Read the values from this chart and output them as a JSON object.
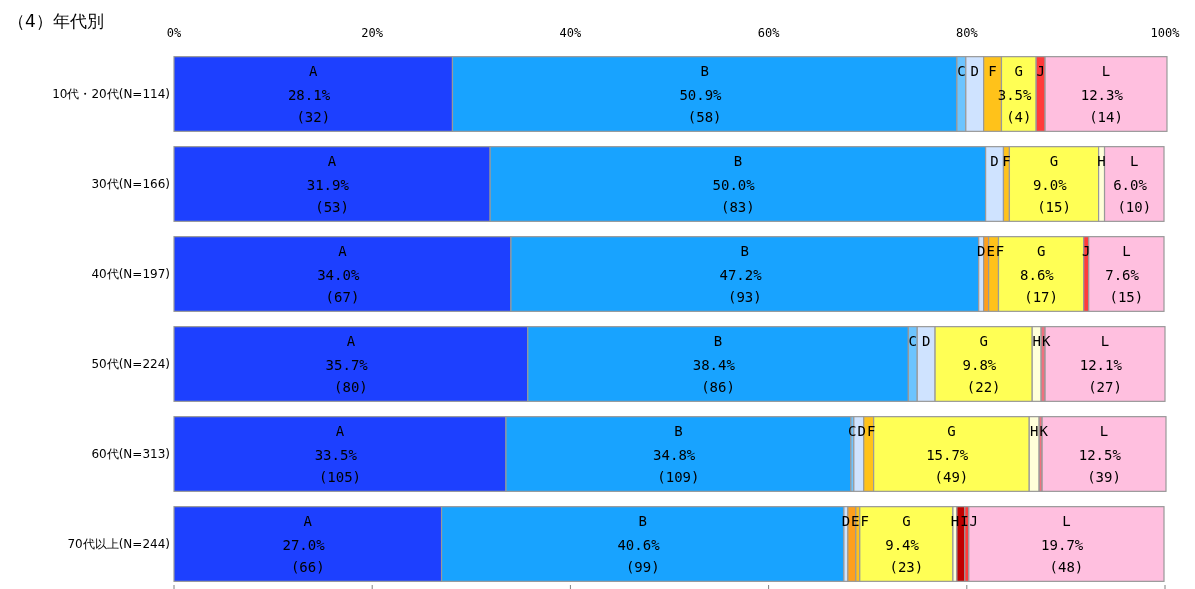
{
  "chart_data": {
    "type": "bar",
    "orientation": "horizontal",
    "stacked": true,
    "title": "（4）年代別",
    "categories": [
      "10代・20代(N=114)",
      "30代(N=166)",
      "40代(N=197)",
      "50代(N=224)",
      "60代(N=313)",
      "70代以上(N=244)"
    ],
    "xlim": [
      0,
      100
    ],
    "xticks": [
      {
        "value": 0,
        "label": "0%"
      },
      {
        "value": 20,
        "label": "20%"
      },
      {
        "value": 40,
        "label": "40%"
      },
      {
        "value": 60,
        "label": "60%"
      },
      {
        "value": 80,
        "label": "80%"
      },
      {
        "value": 100,
        "label": "100%"
      }
    ],
    "series": [
      {
        "name": "A",
        "color": "#1d40ff",
        "values": [
          28.1,
          31.9,
          34.0,
          35.7,
          33.5,
          27.0
        ],
        "value_labels": [
          "28.1%\n(32)",
          "31.9%\n(53)",
          "34.0%\n(67)",
          "35.7%\n(80)",
          "33.5%\n(105)",
          "27.0%\n(66)"
        ]
      },
      {
        "name": "B",
        "color": "#18a3ff",
        "values": [
          50.9,
          50.0,
          47.2,
          38.4,
          34.8,
          40.6
        ],
        "value_labels": [
          "50.9%\n(58)",
          "50.0%\n(83)",
          "47.2%\n(93)",
          "38.4%\n(86)",
          "34.8%\n(109)",
          "40.6%\n(99)"
        ]
      },
      {
        "name": "C",
        "color": "#6cc4ff",
        "values": [
          0.9,
          0,
          0,
          0.9,
          0.3,
          0
        ]
      },
      {
        "name": "D",
        "color": "#cfe3ff",
        "values": [
          1.8,
          1.8,
          0.5,
          1.8,
          1.0,
          0.4
        ]
      },
      {
        "name": "E",
        "color": "#ff9f1c",
        "values": [
          0,
          0,
          0.5,
          0,
          0,
          0.8
        ]
      },
      {
        "name": "F",
        "color": "#ffc21a",
        "values": [
          1.8,
          0.6,
          1.0,
          0,
          1.0,
          0.4
        ]
      },
      {
        "name": "G",
        "color": "#ffff55",
        "values": [
          3.5,
          9.0,
          8.6,
          9.8,
          15.7,
          9.4
        ],
        "value_labels": [
          "3.5%\n(4)",
          "9.0%\n(15)",
          "8.6%\n(17)",
          "9.8%\n(22)",
          "15.7%\n(49)",
          "9.4%\n(23)"
        ]
      },
      {
        "name": "H",
        "color": "#ffffd9",
        "values": [
          0,
          0.6,
          0,
          0.9,
          1.0,
          0.4
        ]
      },
      {
        "name": "I",
        "color": "#c00000",
        "values": [
          0,
          0,
          0,
          0,
          0,
          0.8
        ]
      },
      {
        "name": "J",
        "color": "#ff3b3b",
        "values": [
          0.9,
          0,
          0.5,
          0,
          0,
          0.4
        ]
      },
      {
        "name": "K",
        "color": "#f0707f",
        "values": [
          0,
          0,
          0,
          0.4,
          0.3,
          0
        ]
      },
      {
        "name": "L",
        "color": "#ffbfdf",
        "values": [
          12.3,
          6.0,
          7.6,
          12.1,
          12.5,
          19.7
        ],
        "value_labels": [
          "12.3%\n(14)",
          "6.0%\n(10)",
          "7.6%\n(15)",
          "12.1%\n(27)",
          "12.5%\n(39)",
          "19.7%\n(48)"
        ]
      }
    ]
  }
}
